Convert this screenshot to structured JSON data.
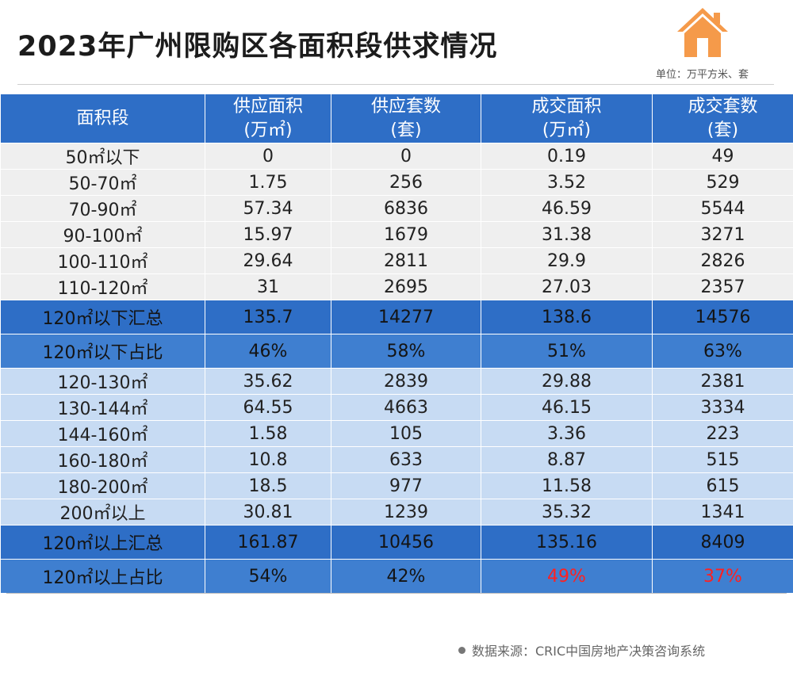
{
  "title": "2023年广州限购区各面积段供求情况",
  "unit_note": "单位：万平方米、套",
  "icons": {
    "house": "house-icon"
  },
  "colors": {
    "header": "#2e6ec6",
    "accent": "#f59a4a",
    "highlight": "#ff2020"
  },
  "table": {
    "headers": [
      {
        "line1": "面积段",
        "line2": ""
      },
      {
        "line1": "供应面积",
        "line2": "(万㎡)"
      },
      {
        "line1": "供应套数",
        "line2": "(套)"
      },
      {
        "line1": "成交面积",
        "line2": "(万㎡)"
      },
      {
        "line1": "成交套数",
        "line2": "(套)"
      }
    ],
    "rows": [
      {
        "type": "gray",
        "cells": [
          "50㎡以下",
          "0",
          "0",
          "0.19",
          "49"
        ]
      },
      {
        "type": "gray",
        "cells": [
          "50-70㎡",
          "1.75",
          "256",
          "3.52",
          "529"
        ]
      },
      {
        "type": "gray",
        "cells": [
          "70-90㎡",
          "57.34",
          "6836",
          "46.59",
          "5544"
        ]
      },
      {
        "type": "gray",
        "cells": [
          "90-100㎡",
          "15.97",
          "1679",
          "31.38",
          "3271"
        ]
      },
      {
        "type": "gray",
        "cells": [
          "100-110㎡",
          "29.64",
          "2811",
          "29.9",
          "2826"
        ]
      },
      {
        "type": "gray",
        "cells": [
          "110-120㎡",
          "31",
          "2695",
          "27.03",
          "2357"
        ]
      },
      {
        "type": "sum",
        "cells": [
          "120㎡以下汇总",
          "135.7",
          "14277",
          "138.6",
          "14576"
        ]
      },
      {
        "type": "ratio",
        "cells": [
          "120㎡以下占比",
          "46%",
          "58%",
          "51%",
          "63%"
        ]
      },
      {
        "type": "blue",
        "cells": [
          "120-130㎡",
          "35.62",
          "2839",
          "29.88",
          "2381"
        ]
      },
      {
        "type": "blue",
        "cells": [
          "130-144㎡",
          "64.55",
          "4663",
          "46.15",
          "3334"
        ]
      },
      {
        "type": "blue",
        "cells": [
          "144-160㎡",
          "1.58",
          "105",
          "3.36",
          "223"
        ]
      },
      {
        "type": "blue",
        "cells": [
          "160-180㎡",
          "10.8",
          "633",
          "8.87",
          "515"
        ]
      },
      {
        "type": "blue",
        "cells": [
          "180-200㎡",
          "18.5",
          "977",
          "11.58",
          "615"
        ]
      },
      {
        "type": "blue",
        "cells": [
          "200㎡以上",
          "30.81",
          "1239",
          "35.32",
          "1341"
        ]
      },
      {
        "type": "sum",
        "cells": [
          "120㎡以上汇总",
          "161.87",
          "10456",
          "135.16",
          "8409"
        ]
      },
      {
        "type": "ratio",
        "cells": [
          "120㎡以上占比",
          "54%",
          "42%",
          "49%",
          "37%"
        ]
      }
    ]
  },
  "source": "数据来源：CRIC中国房地产决策咨询系统"
}
